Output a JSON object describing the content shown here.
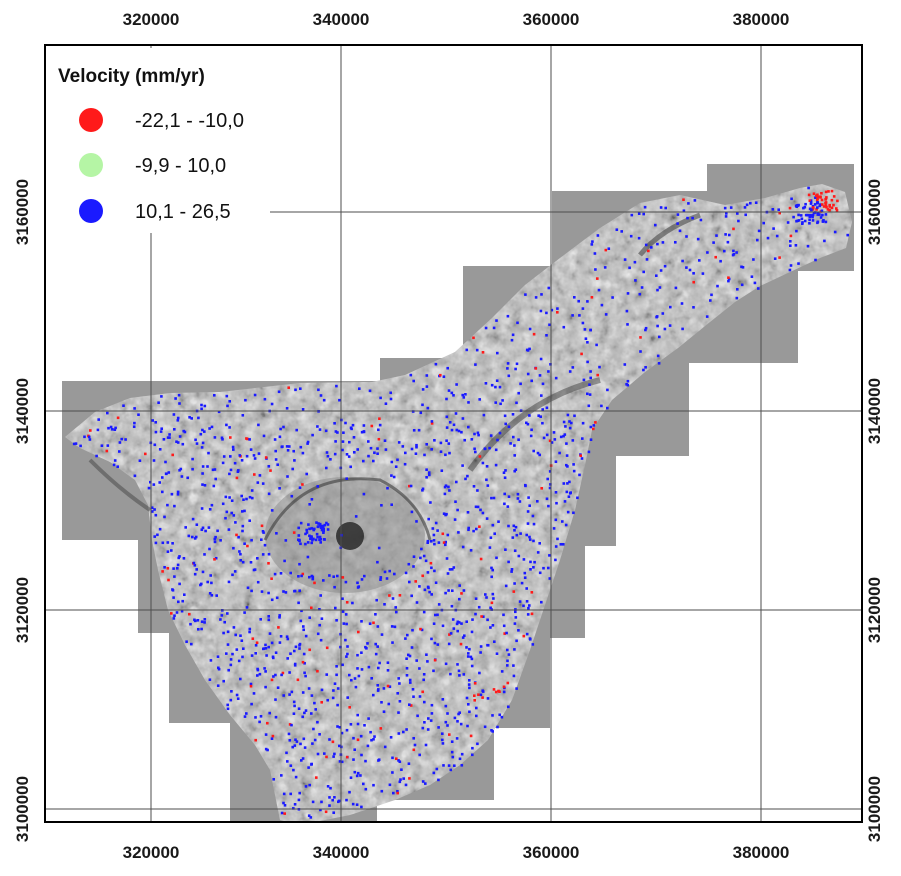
{
  "map": {
    "x_ticks": [
      "320000",
      "340000",
      "360000",
      "380000"
    ],
    "y_ticks": [
      "3160000",
      "3140000",
      "3120000",
      "3100000"
    ],
    "legend": {
      "title": "Velocity (mm/yr)",
      "items": [
        {
          "label": "-22,1 - -10,0",
          "color": "#ff1a1a"
        },
        {
          "label": "-9,9 - 10,0",
          "color": "#b5f5a5"
        },
        {
          "label": "10,1 - 26,5",
          "color": "#1a1aff"
        }
      ]
    },
    "colors": {
      "coverage": "#999999",
      "terrain": "#b8b8b8",
      "grid": "#4d4d4d",
      "frame": "#000000"
    }
  }
}
